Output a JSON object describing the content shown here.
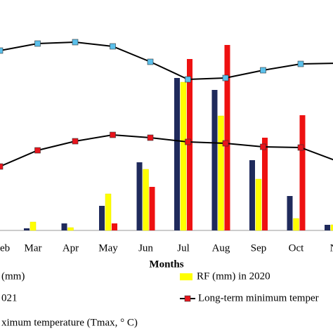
{
  "chart_data": {
    "type": "bar",
    "x_label": "Months",
    "categories": [
      "eb",
      "Mar",
      "Apr",
      "May",
      "Jun",
      "Jul",
      "Aug",
      "Sep",
      "Oct",
      "N"
    ],
    "ylim": [
      0,
      300
    ],
    "series": [
      {
        "name": "(mm)",
        "type": "bar",
        "color": "#1f2a5c",
        "values": [
          0,
          3,
          10,
          35,
          97,
          217,
          200,
          100,
          49,
          8
        ]
      },
      {
        "name": "RF (mm) in 2020",
        "type": "bar",
        "color": "#ffff00",
        "values": [
          0,
          12,
          4,
          52,
          87,
          211,
          163,
          73,
          17,
          8
        ]
      },
      {
        "name": "021",
        "type": "bar",
        "color": "#ee1111",
        "values": [
          0,
          0,
          0,
          10,
          62,
          244,
          264,
          132,
          164,
          0
        ]
      },
      {
        "name": "Long-term minimum temper",
        "type": "line",
        "color": "#000000",
        "marker": "#e8141c",
        "values": [
          91,
          114,
          127,
          136,
          132,
          126,
          124,
          119,
          118,
          98
        ]
      },
      {
        "name": "ximum temperature (Tmax, ° C)",
        "type": "line",
        "color": "#000000",
        "marker": "#5bc0eb",
        "values": [
          256,
          266,
          268,
          262,
          240,
          215,
          217,
          228,
          237,
          238
        ]
      }
    ]
  }
}
